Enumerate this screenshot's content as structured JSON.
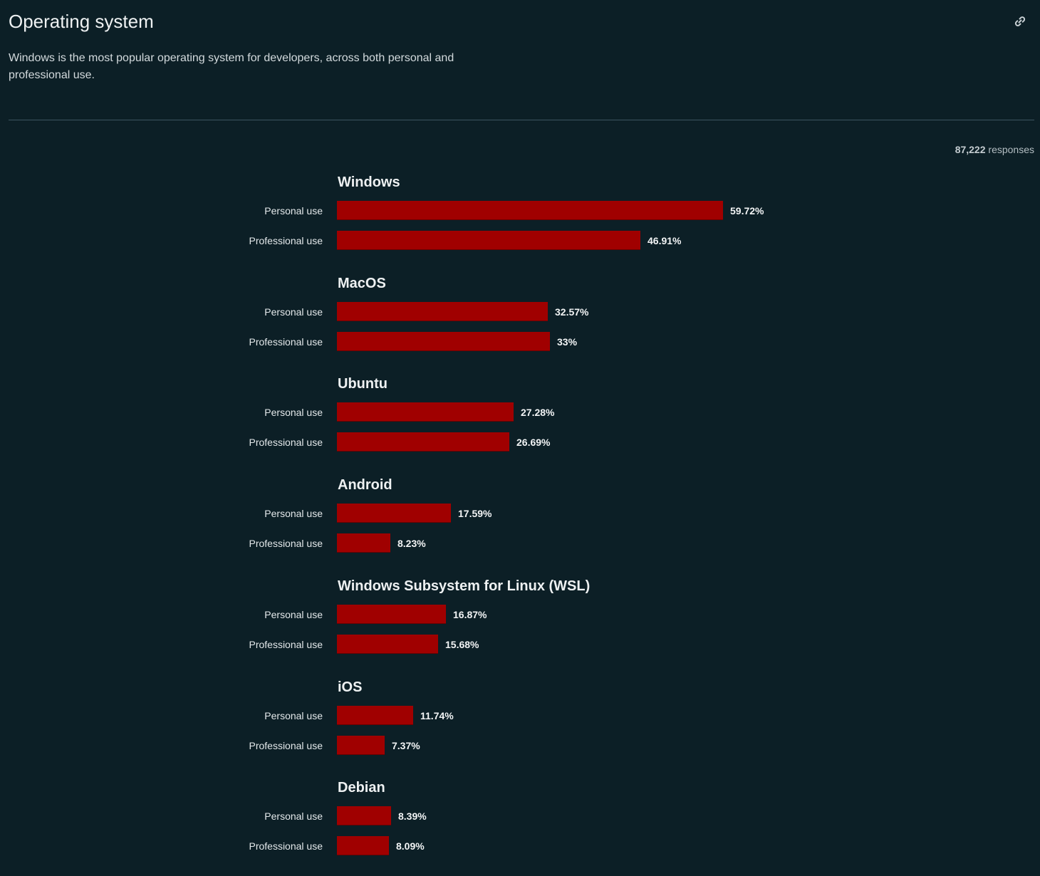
{
  "header": {
    "title": "Operating system",
    "subtitle": "Windows is the most popular operating system for developers, across both personal and professional use.",
    "link_icon": "link-icon"
  },
  "responses": {
    "count": "87,222",
    "label": "responses"
  },
  "colors": {
    "background": "#0c1f26",
    "bar": "#a00000"
  },
  "chart_data": {
    "type": "bar",
    "orientation": "horizontal",
    "unit": "%",
    "xlim": [
      0,
      100
    ],
    "grid": false,
    "series_labels": [
      "Personal use",
      "Professional use"
    ],
    "groups": [
      {
        "name": "Windows",
        "rows": [
          {
            "label": "Personal use",
            "value": 59.72,
            "display": "59.72%"
          },
          {
            "label": "Professional use",
            "value": 46.91,
            "display": "46.91%"
          }
        ]
      },
      {
        "name": "MacOS",
        "rows": [
          {
            "label": "Personal use",
            "value": 32.57,
            "display": "32.57%"
          },
          {
            "label": "Professional use",
            "value": 33,
            "display": "33%"
          }
        ]
      },
      {
        "name": "Ubuntu",
        "rows": [
          {
            "label": "Personal use",
            "value": 27.28,
            "display": "27.28%"
          },
          {
            "label": "Professional use",
            "value": 26.69,
            "display": "26.69%"
          }
        ]
      },
      {
        "name": "Android",
        "rows": [
          {
            "label": "Personal use",
            "value": 17.59,
            "display": "17.59%"
          },
          {
            "label": "Professional use",
            "value": 8.23,
            "display": "8.23%"
          }
        ]
      },
      {
        "name": "Windows Subsystem for Linux (WSL)",
        "rows": [
          {
            "label": "Personal use",
            "value": 16.87,
            "display": "16.87%"
          },
          {
            "label": "Professional use",
            "value": 15.68,
            "display": "15.68%"
          }
        ]
      },
      {
        "name": "iOS",
        "rows": [
          {
            "label": "Personal use",
            "value": 11.74,
            "display": "11.74%"
          },
          {
            "label": "Professional use",
            "value": 7.37,
            "display": "7.37%"
          }
        ]
      },
      {
        "name": "Debian",
        "rows": [
          {
            "label": "Personal use",
            "value": 8.39,
            "display": "8.39%"
          },
          {
            "label": "Professional use",
            "value": 8.09,
            "display": "8.09%"
          }
        ]
      }
    ]
  }
}
